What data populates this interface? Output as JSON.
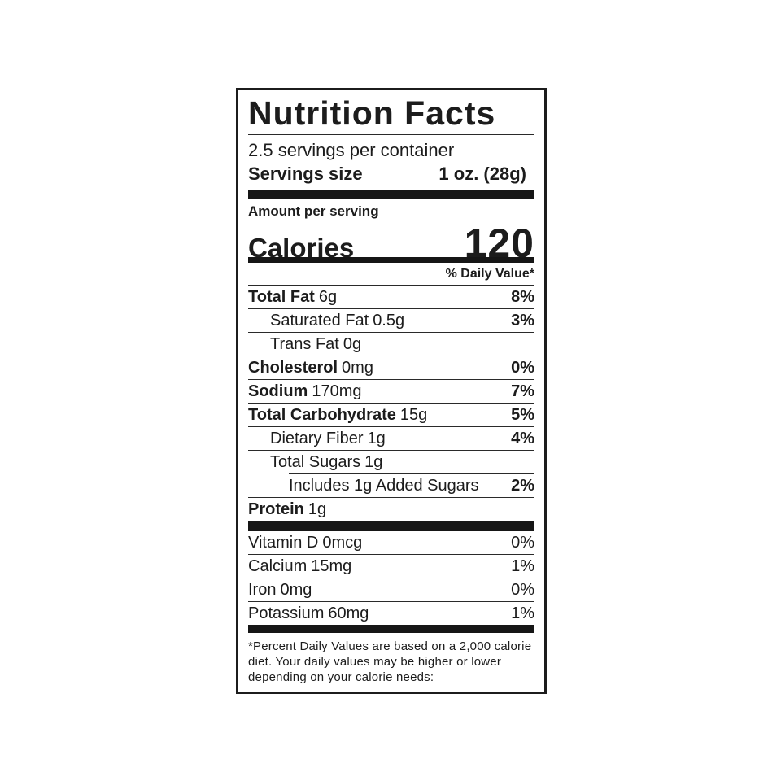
{
  "label": {
    "title": "Nutrition Facts",
    "servings_per_container": "2.5 servings per container",
    "serving_size": {
      "label": "Servings size",
      "value": "1 oz. (28g)"
    },
    "amount_per_serving": "Amount per serving",
    "calories": {
      "label": "Calories",
      "value": "120"
    },
    "daily_value_header": "% Daily Value*",
    "nutrients": [
      {
        "name": "Total Fat",
        "amount": "6g",
        "dv": "8%"
      },
      {
        "name": "Saturated Fat",
        "amount": "0.5g",
        "dv": "3%"
      },
      {
        "name": "Trans Fat",
        "amount": "0g",
        "dv": ""
      },
      {
        "name": "Cholesterol",
        "amount": "0mg",
        "dv": "0%"
      },
      {
        "name": "Sodium",
        "amount": "170mg",
        "dv": "7%"
      },
      {
        "name": "Total Carbohydrate",
        "amount": "15g",
        "dv": "5%"
      },
      {
        "name": "Dietary Fiber",
        "amount": "1g",
        "dv": "4%"
      },
      {
        "name": "Total Sugars",
        "amount": "1g",
        "dv": ""
      },
      {
        "name": "Includes 1g Added Sugars",
        "amount": "",
        "dv": "2%"
      },
      {
        "name": "Protein",
        "amount": "1g",
        "dv": ""
      }
    ],
    "vitamins": [
      {
        "name": "Vitamin D",
        "amount": "0mcg",
        "dv": "0%"
      },
      {
        "name": "Calcium",
        "amount": "15mg",
        "dv": "1%"
      },
      {
        "name": "Iron",
        "amount": "0mg",
        "dv": "0%"
      },
      {
        "name": "Potassium",
        "amount": "60mg",
        "dv": "1%"
      }
    ],
    "footnote": "*Percent Daily Values are based on a 2,000 calorie diet. Your daily values may be higher or lower depending on your calorie needs:",
    "colors": {
      "ink": "#1c1c1c",
      "background": "#ffffff"
    }
  }
}
